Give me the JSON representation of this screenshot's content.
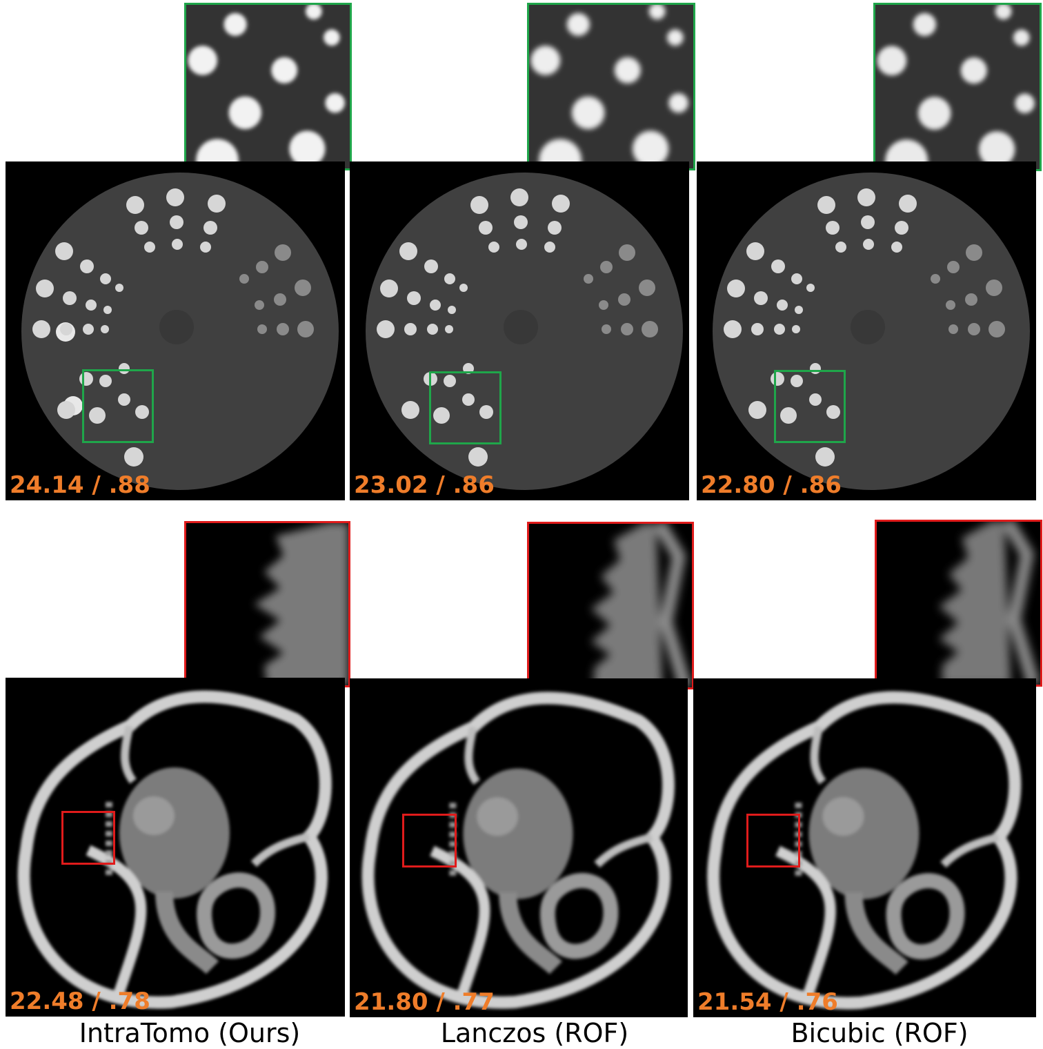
{
  "columns": [
    {
      "caption": "IntraTomo (Ours)",
      "phantom_metric": "24.14 / .88",
      "head_metric": "22.48 / .78",
      "phantom_inset_color": "#1fa64a",
      "head_inset_color": "#e01b1b"
    },
    {
      "caption": "Lanczos (ROF)",
      "phantom_metric": "23.02 / .86",
      "head_metric": "21.80 / .77",
      "phantom_inset_color": "#1fa64a",
      "head_inset_color": "#e01b1b"
    },
    {
      "caption": "Bicubic (ROF)",
      "phantom_metric": "22.80 / .86",
      "head_metric": "21.54 / .76",
      "phantom_inset_color": "#1fa64a",
      "head_inset_color": "#e01b1b"
    }
  ],
  "metric_color": "#ef7d2a"
}
